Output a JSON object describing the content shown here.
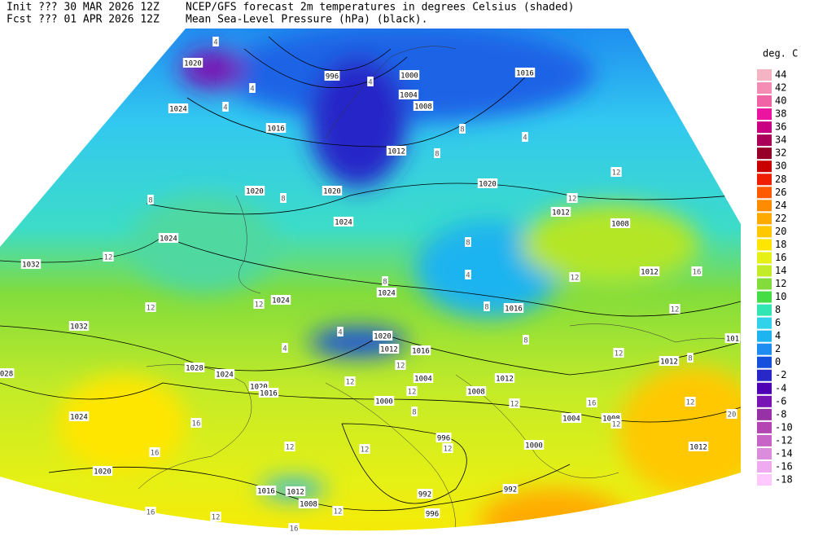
{
  "header": {
    "init": "Init  ??? 30 MAR 2026 12Z",
    "fcst": "Fcst ??? 01 APR 2026 12Z",
    "title": "NCEP/GFS forecast 2m temperatures in degrees Celsius (shaded)",
    "subtitle": "Mean Sea-Level Pressure (hPa) (black)."
  },
  "legend": {
    "unit": "deg. C",
    "levels": [
      {
        "value": 44,
        "color": "#f5b4c3"
      },
      {
        "value": 42,
        "color": "#f58cb4"
      },
      {
        "value": 40,
        "color": "#f064a5"
      },
      {
        "value": 38,
        "color": "#eb14a0"
      },
      {
        "value": 36,
        "color": "#c80082"
      },
      {
        "value": 34,
        "color": "#aa005a"
      },
      {
        "value": 32,
        "color": "#960028"
      },
      {
        "value": 30,
        "color": "#c80000"
      },
      {
        "value": 28,
        "color": "#f01e00"
      },
      {
        "value": 26,
        "color": "#ff5a00"
      },
      {
        "value": 24,
        "color": "#ff8c00"
      },
      {
        "value": 22,
        "color": "#ffaa00"
      },
      {
        "value": 20,
        "color": "#ffc800"
      },
      {
        "value": 18,
        "color": "#ffe600"
      },
      {
        "value": 16,
        "color": "#e6f014"
      },
      {
        "value": 14,
        "color": "#c3eb28"
      },
      {
        "value": 12,
        "color": "#82dc3c"
      },
      {
        "value": 10,
        "color": "#46dc46"
      },
      {
        "value": 8,
        "color": "#32e6b4"
      },
      {
        "value": 6,
        "color": "#32d2eb"
      },
      {
        "value": 4,
        "color": "#1eb4f0"
      },
      {
        "value": 2,
        "color": "#1e8cf0"
      },
      {
        "value": 0,
        "color": "#1450dc"
      },
      {
        "value": -2,
        "color": "#2828c8"
      },
      {
        "value": -4,
        "color": "#5000b4"
      },
      {
        "value": -6,
        "color": "#7814b4"
      },
      {
        "value": -8,
        "color": "#9632a5"
      },
      {
        "value": -10,
        "color": "#b446b4"
      },
      {
        "value": -12,
        "color": "#c864c8"
      },
      {
        "value": -14,
        "color": "#dc8cdc"
      },
      {
        "value": -16,
        "color": "#f0aaf0"
      },
      {
        "value": -18,
        "color": "#ffc8ff"
      }
    ]
  },
  "isobar_labels": [
    "1020",
    "996",
    "1000",
    "1004",
    "1008",
    "1016",
    "1024",
    "1016",
    "1012",
    "1020",
    "1020",
    "1020",
    "1012",
    "1008",
    "1024",
    "1024",
    "1032",
    "1012",
    "1024",
    "1024",
    "1016",
    "1032",
    "1020",
    "1012",
    "1016",
    "1012",
    "1028",
    "028",
    "1024",
    "1012",
    "1004",
    "1020",
    "1016",
    "1008",
    "1000",
    "1024",
    "1004",
    "1008",
    "996",
    "1000",
    "1012",
    "1020",
    "1016",
    "1012",
    "992",
    "992",
    "1008",
    "996",
    "101"
  ],
  "temperature_labels": [
    "8",
    "8",
    "12",
    "12",
    "12",
    "12",
    "12",
    "12",
    "16",
    "12",
    "12",
    "16",
    "12",
    "16",
    "16",
    "12",
    "12",
    "12",
    "12",
    "12",
    "12",
    "16",
    "12",
    "16",
    "12",
    "20",
    "8",
    "8",
    "4",
    "4",
    "4",
    "8",
    "8",
    "4",
    "4",
    "4",
    "8",
    "8",
    "4",
    "8",
    "4",
    "12",
    "8",
    "12"
  ]
}
